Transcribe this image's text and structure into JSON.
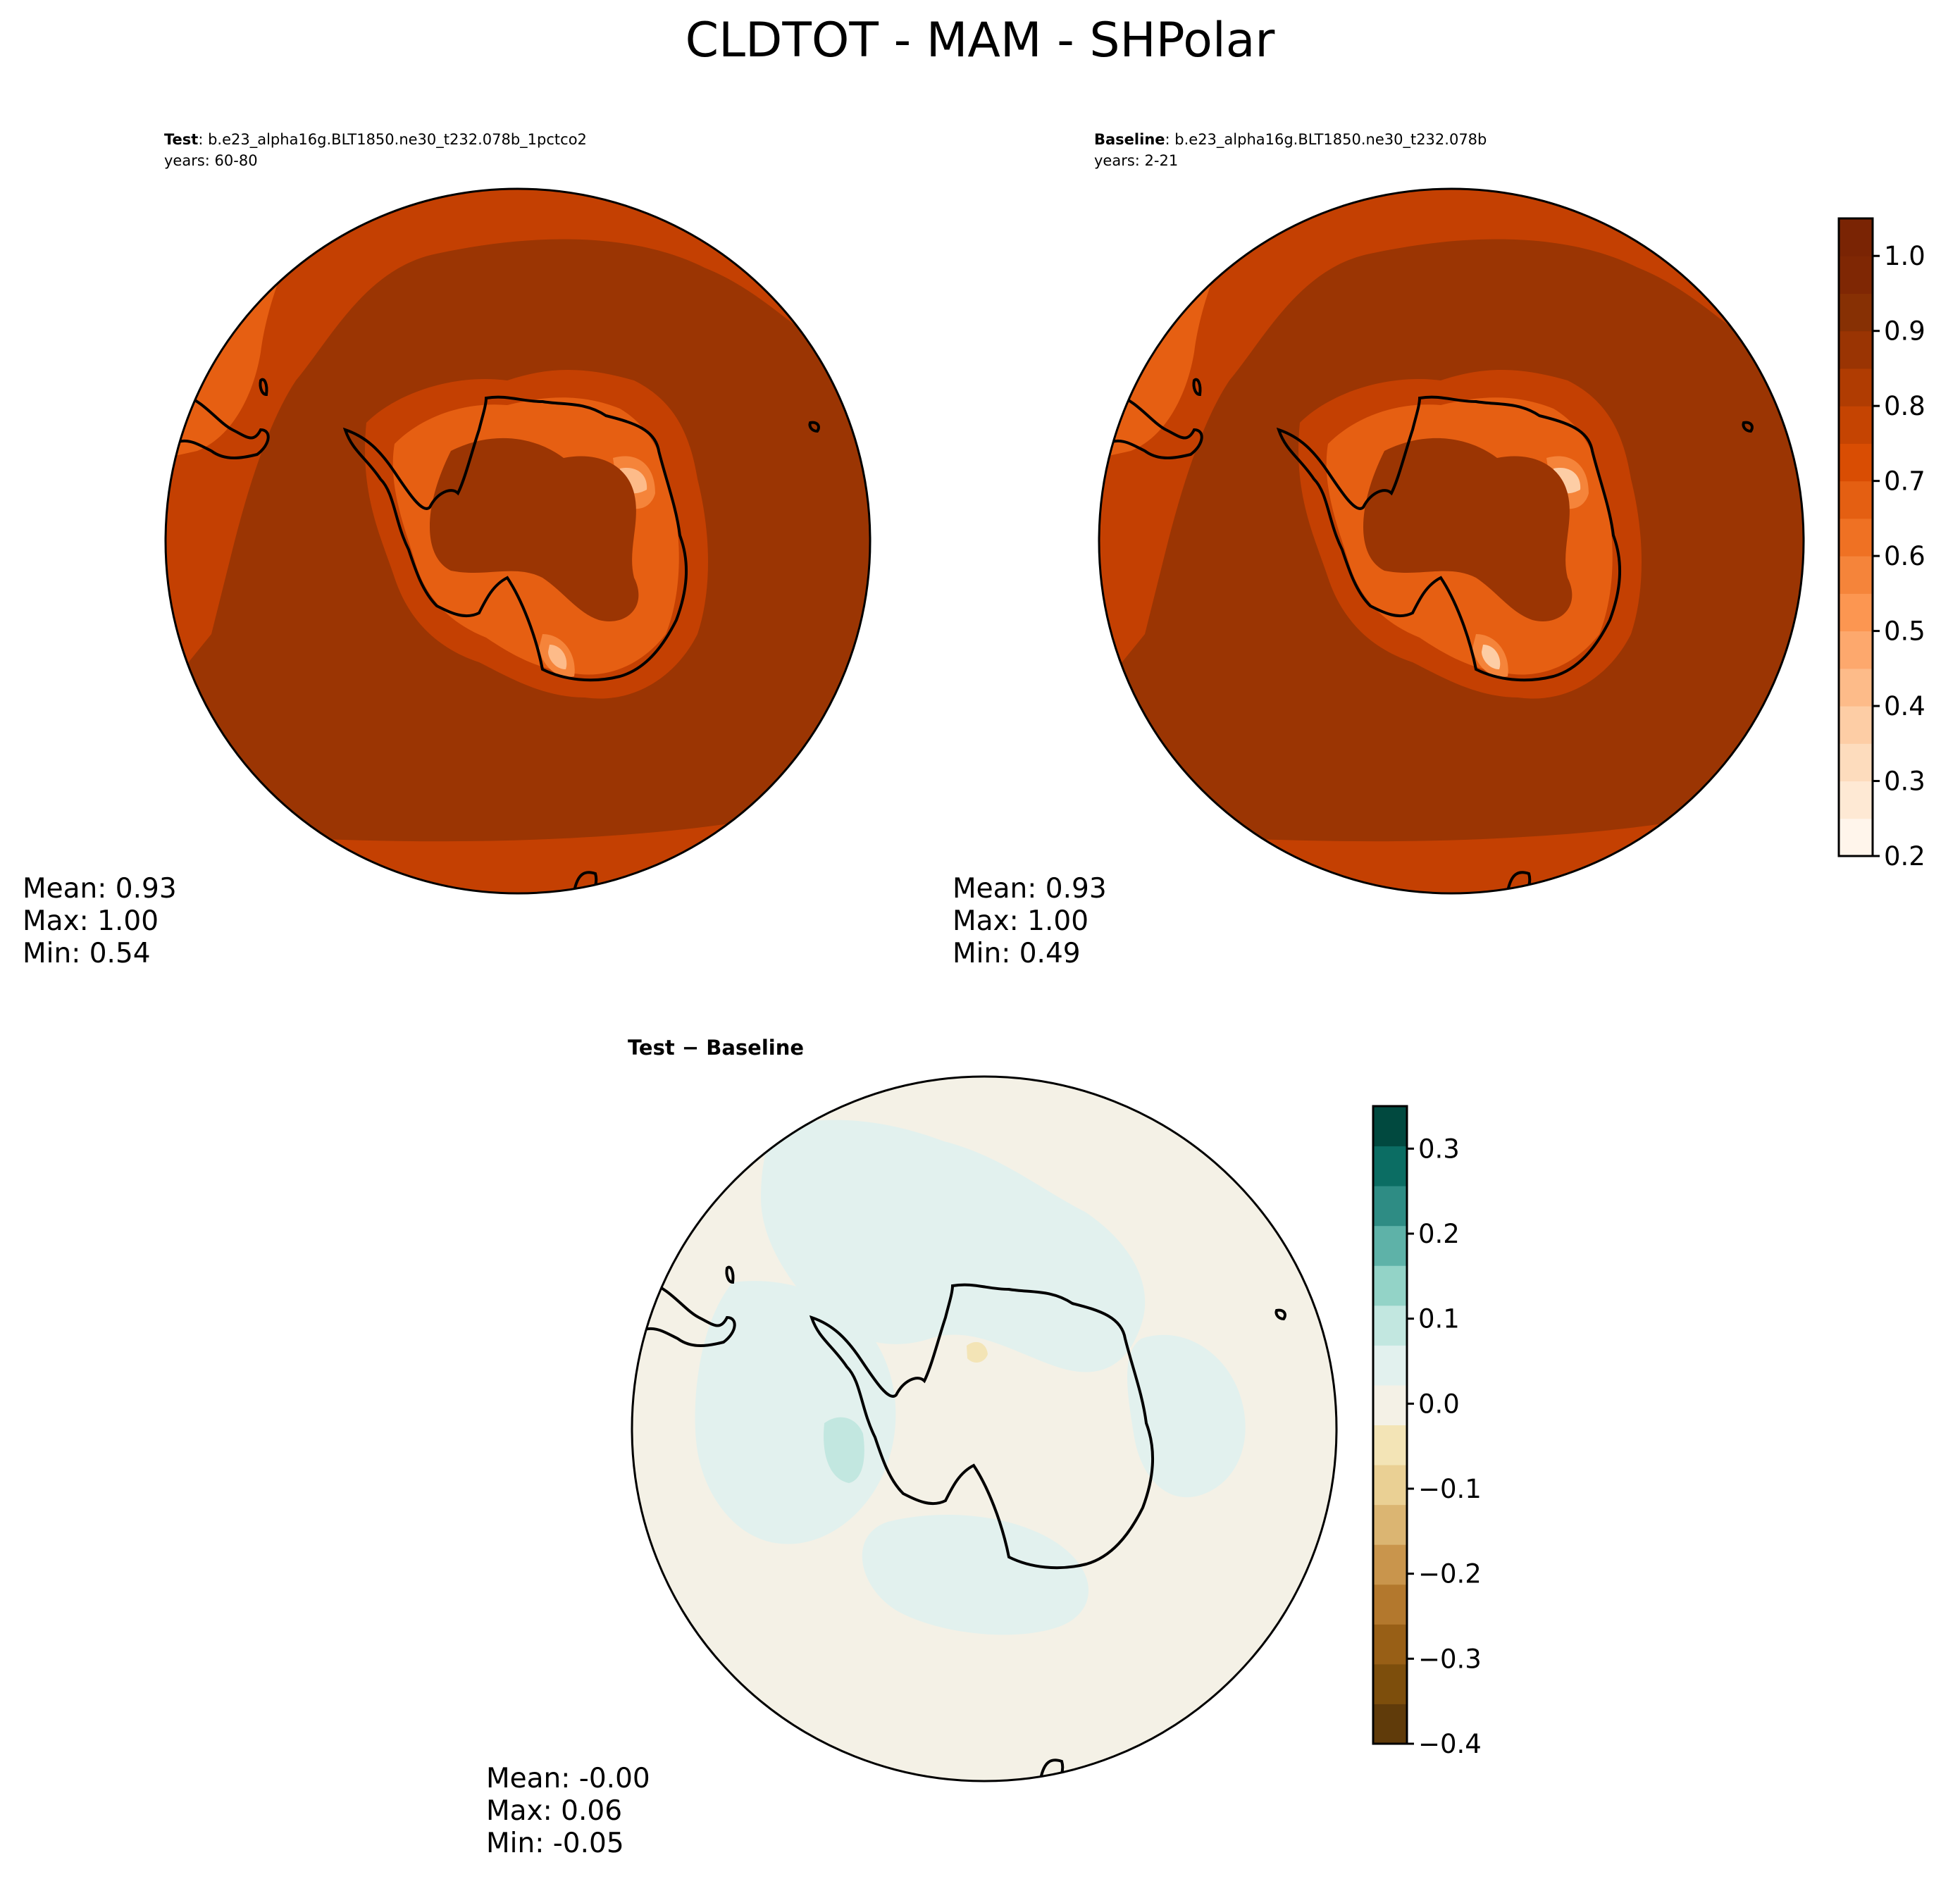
{
  "figure": {
    "title": "CLDTOT - MAM - SHPolar"
  },
  "chart_data": [
    {
      "type": "heatmap",
      "projection": "south-polar-stereographic",
      "title_bold": "Test",
      "title_rest": ": b.e23_alpha16g.BLT1850.ne30_t232.078b_1pctco2",
      "subtitle": "years: 60-80",
      "stats": {
        "mean": "Mean:  0.93",
        "max": "Max:  1.00",
        "min": "Min:  0.54"
      },
      "field": {
        "open_ocean": 0.95,
        "midlatitude_band": 0.85,
        "antarctic_margin": 0.7,
        "antarctic_interior": 0.93,
        "minimum": 0.54,
        "maximum": 1.0
      },
      "colormap": "Oranges",
      "levels": [
        0.2,
        0.25,
        0.3,
        0.35,
        0.4,
        0.45,
        0.5,
        0.55,
        0.6,
        0.65,
        0.7,
        0.75,
        0.8,
        0.85,
        0.9,
        0.95,
        1.0,
        1.05
      ]
    },
    {
      "type": "heatmap",
      "projection": "south-polar-stereographic",
      "title_bold": "Baseline",
      "title_rest": ": b.e23_alpha16g.BLT1850.ne30_t232.078b",
      "subtitle": "years: 2-21",
      "stats": {
        "mean": "Mean:  0.93",
        "max": "Max:  1.00",
        "min": "Min:  0.49"
      },
      "field": {
        "open_ocean": 0.95,
        "midlatitude_band": 0.85,
        "antarctic_margin": 0.7,
        "antarctic_interior": 0.93,
        "minimum": 0.49,
        "maximum": 1.0
      },
      "colormap": "Oranges",
      "levels": [
        0.2,
        0.25,
        0.3,
        0.35,
        0.4,
        0.45,
        0.5,
        0.55,
        0.6,
        0.65,
        0.7,
        0.75,
        0.8,
        0.85,
        0.9,
        0.95,
        1.0,
        1.05
      ],
      "colorbar": {
        "ticks": [
          "0.2",
          "0.3",
          "0.4",
          "0.5",
          "0.6",
          "0.7",
          "0.8",
          "0.9",
          "1.0"
        ],
        "tick_values": [
          0.2,
          0.3,
          0.4,
          0.5,
          0.6,
          0.7,
          0.8,
          0.9,
          1.0
        ],
        "range": [
          0.2,
          1.05
        ],
        "colors": [
          "#fff5eb",
          "#fee9d4",
          "#fddcbd",
          "#fdcda5",
          "#fdbb89",
          "#fda86d",
          "#fc9651",
          "#f5843a",
          "#ef7123",
          "#e45f12",
          "#d94d03",
          "#c54402",
          "#b03c02",
          "#9a3403",
          "#873004",
          "#7f2704",
          "#7a2404"
        ]
      }
    },
    {
      "type": "heatmap",
      "projection": "south-polar-stereographic",
      "title_bold": "Test − Baseline",
      "stats": {
        "mean": "Mean: -0.00",
        "max": "Max:  0.06",
        "min": "Min: -0.05"
      },
      "field": {
        "background": 0.0,
        "mostly": "between -0.025 and 0.025",
        "minimum": -0.05,
        "maximum": 0.06
      },
      "colormap": "BrBG",
      "levels": [
        -0.4,
        -0.35,
        -0.3,
        -0.25,
        -0.2,
        -0.15,
        -0.1,
        -0.05,
        0.0,
        0.05,
        0.1,
        0.15,
        0.2,
        0.25,
        0.3,
        0.35
      ],
      "colorbar": {
        "ticks": [
          "−0.4",
          "−0.3",
          "−0.2",
          "−0.1",
          "0.0",
          "0.1",
          "0.2",
          "0.3"
        ],
        "tick_values": [
          -0.4,
          -0.3,
          -0.2,
          -0.1,
          0.0,
          0.1,
          0.2,
          0.3
        ],
        "range": [
          -0.4,
          0.35
        ],
        "colors": [
          "#603b0a",
          "#7d4e0c",
          "#985f16",
          "#b3782d",
          "#c9954c",
          "#dbb572",
          "#ead094",
          "#f3e4b6",
          "#f4f1e6",
          "#e2f1ee",
          "#c2e7e0",
          "#93d3c7",
          "#5eb2a8",
          "#2e8c84",
          "#0b6d63",
          "#01493f"
        ]
      }
    }
  ]
}
